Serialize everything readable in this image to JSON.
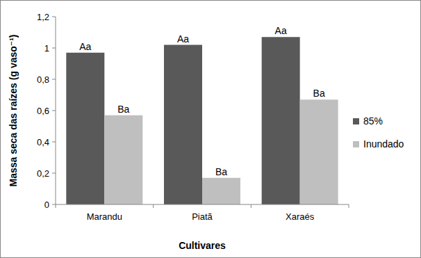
{
  "chart_data": {
    "type": "bar",
    "categories": [
      "Marandu",
      "Piatã",
      "Xaraés"
    ],
    "series": [
      {
        "name": "85%",
        "color": "#595959",
        "values": [
          0.97,
          1.02,
          1.07
        ],
        "annotations": [
          "Aa",
          "Aa",
          "Aa"
        ]
      },
      {
        "name": "Inundado",
        "color": "#bfbfbf",
        "values": [
          0.57,
          0.17,
          0.67
        ],
        "annotations": [
          "Ba",
          "Ba",
          "Ba"
        ]
      }
    ],
    "x_label": "Cultivares",
    "y_label": "Massa seca das raízes (g vaso⁻¹)",
    "ylim": [
      0,
      1.2
    ],
    "yticks": [
      0,
      {
        "value": 0.2,
        "label": "0,2"
      },
      {
        "value": 0.4,
        "label": "0,4"
      },
      {
        "value": 0.6,
        "label": "0,6"
      },
      {
        "value": 0.8,
        "label": "0,8"
      },
      1,
      {
        "value": 1.2,
        "label": "1,2"
      }
    ],
    "grid": false,
    "legend": "right"
  }
}
